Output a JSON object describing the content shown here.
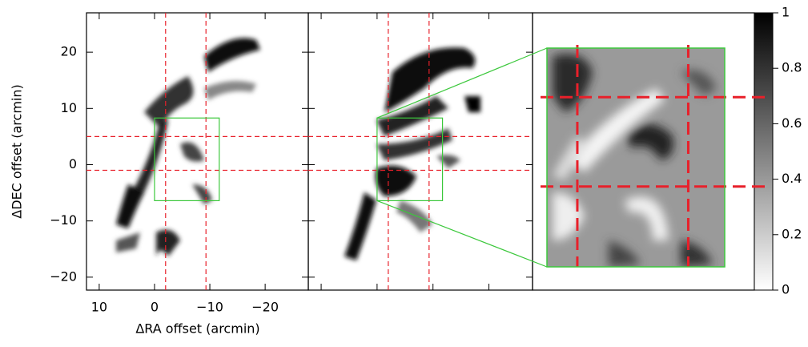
{
  "chart_data": {
    "type": "image",
    "xlabel": "ΔRA offset (arcmin)",
    "ylabel": "ΔDEC offset (arcmin)",
    "xlim": [
      12.3,
      -27.8
    ],
    "ylim": [
      -22.3,
      27
    ],
    "xticks": [
      10,
      0,
      {
        "value": -10,
        "label": "−10"
      },
      {
        "value": -20,
        "label": "−20"
      }
    ],
    "yticks": [
      {
        "value": -20,
        "label": "−20"
      },
      {
        "value": -10,
        "label": "−10"
      },
      0,
      10,
      20
    ],
    "crosshair": {
      "x": [
        -2,
        -9.3
      ],
      "y": [
        5,
        -1
      ],
      "color": "#e8202a"
    },
    "zoom_box": {
      "xlim": [
        0,
        -11.7
      ],
      "ylim": [
        -6.4,
        8.3
      ],
      "color": "#3cc83c"
    },
    "colorbar": {
      "lim": [
        0,
        1
      ],
      "ticks": [
        0,
        0.2,
        0.4,
        0.6,
        0.8,
        1
      ]
    }
  }
}
